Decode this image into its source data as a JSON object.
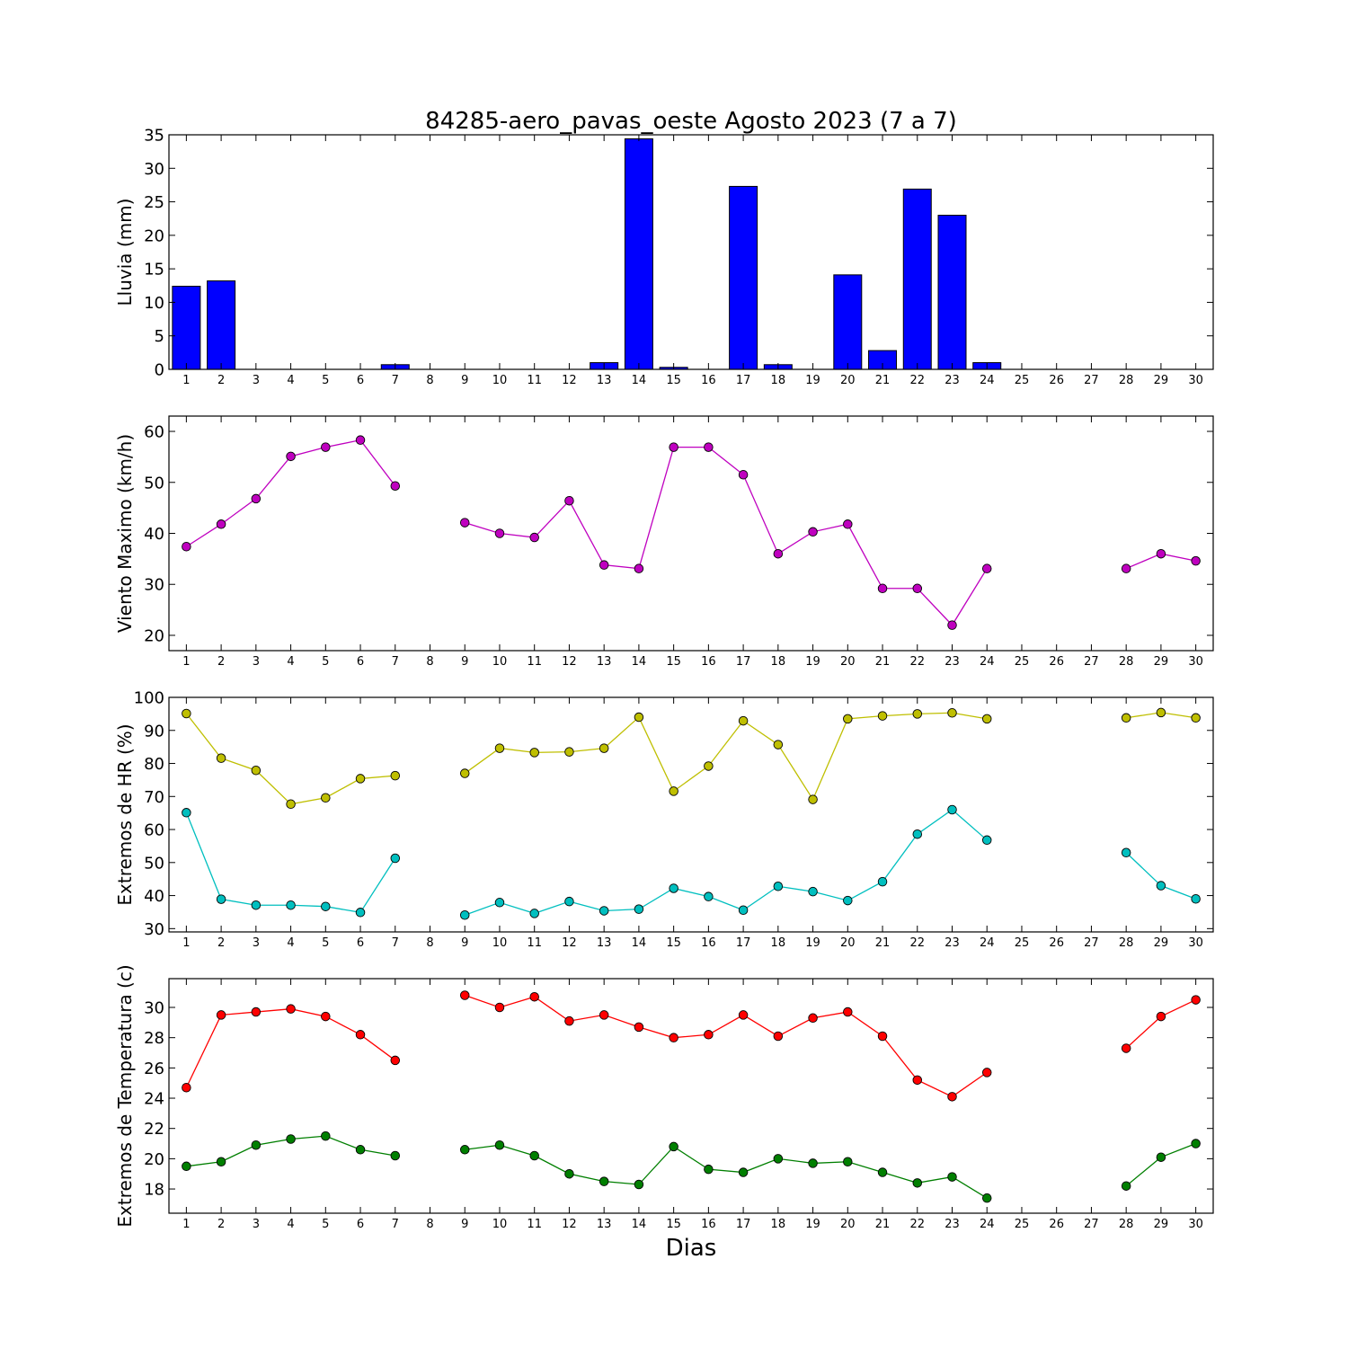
{
  "figure": {
    "title": "84285-aero_pavas_oeste Agosto 2023  (7 a 7)",
    "xlabel": "Dias"
  },
  "chart_data": [
    {
      "type": "bar",
      "ylabel": "Lluvia (mm)",
      "ylim": [
        0,
        35
      ],
      "yticks": [
        0,
        5,
        10,
        15,
        20,
        25,
        30,
        35
      ],
      "x": [
        1,
        2,
        3,
        4,
        5,
        6,
        7,
        8,
        9,
        10,
        11,
        12,
        13,
        14,
        15,
        16,
        17,
        18,
        19,
        20,
        21,
        22,
        23,
        24,
        25,
        26,
        27,
        28,
        29,
        30
      ],
      "xtick_labels": [
        "1",
        "2",
        "3",
        "4",
        "5",
        "6",
        "7",
        "8",
        "9",
        "10",
        "11",
        "12",
        "13",
        "14",
        "15",
        "16",
        "17",
        "18",
        "19",
        "20",
        "21",
        "22",
        "23",
        "24",
        "25",
        "26",
        "27",
        "28",
        "29",
        "30"
      ],
      "xlim": [
        0.5,
        30.5
      ],
      "series": [
        {
          "color": "#0000ff",
          "values": [
            12.4,
            13.2,
            0,
            0,
            0,
            0,
            0.7,
            0,
            0,
            0,
            0,
            0,
            1.0,
            34.4,
            0.3,
            0,
            27.3,
            0.7,
            0,
            14.1,
            2.8,
            26.9,
            23.0,
            1.0,
            0,
            0,
            0,
            0,
            0,
            0
          ]
        }
      ]
    },
    {
      "type": "line",
      "ylabel": "Viento Maximo (km/h)",
      "ylim": [
        17,
        63
      ],
      "yticks": [
        20,
        30,
        40,
        50,
        60
      ],
      "x": [
        1,
        2,
        3,
        4,
        5,
        6,
        7,
        8,
        9,
        10,
        11,
        12,
        13,
        14,
        15,
        16,
        17,
        18,
        19,
        20,
        21,
        22,
        23,
        24,
        25,
        26,
        27,
        28,
        29,
        30
      ],
      "xtick_labels": [
        "1",
        "2",
        "3",
        "4",
        "5",
        "6",
        "7",
        "8",
        "9",
        "10",
        "11",
        "12",
        "13",
        "14",
        "15",
        "16",
        "17",
        "18",
        "19",
        "20",
        "21",
        "22",
        "23",
        "24",
        "25",
        "26",
        "27",
        "28",
        "29",
        "30"
      ],
      "xlim": [
        0.5,
        30.5
      ],
      "series": [
        {
          "color": "#bf00bf",
          "values": [
            37.4,
            41.8,
            46.8,
            55.1,
            56.9,
            58.3,
            49.3,
            null,
            42.1,
            40.0,
            39.2,
            46.4,
            33.8,
            33.1,
            56.9,
            56.9,
            51.5,
            36.0,
            40.3,
            41.8,
            29.2,
            29.2,
            22.0,
            33.1,
            null,
            null,
            null,
            33.1,
            36.0,
            34.6
          ]
        }
      ]
    },
    {
      "type": "line",
      "ylabel": "Extremos de HR (%)",
      "ylim": [
        29,
        100
      ],
      "yticks": [
        30,
        40,
        50,
        60,
        70,
        80,
        90,
        100
      ],
      "x": [
        1,
        2,
        3,
        4,
        5,
        6,
        7,
        8,
        9,
        10,
        11,
        12,
        13,
        14,
        15,
        16,
        17,
        18,
        19,
        20,
        21,
        22,
        23,
        24,
        25,
        26,
        27,
        28,
        29,
        30
      ],
      "xtick_labels": [
        "1",
        "2",
        "3",
        "4",
        "5",
        "6",
        "7",
        "8",
        "9",
        "10",
        "11",
        "12",
        "13",
        "14",
        "15",
        "16",
        "17",
        "18",
        "19",
        "20",
        "21",
        "22",
        "23",
        "24",
        "25",
        "26",
        "27",
        "28",
        "29",
        "30"
      ],
      "xlim": [
        0.5,
        30.5
      ],
      "series": [
        {
          "color": "#bfbf00",
          "values": [
            95.1,
            81.6,
            77.9,
            67.7,
            69.6,
            75.4,
            76.3,
            null,
            77.0,
            84.6,
            83.3,
            83.5,
            84.6,
            94.0,
            71.6,
            79.2,
            92.9,
            85.7,
            69.1,
            93.5,
            94.4,
            95.0,
            95.3,
            93.5,
            null,
            null,
            null,
            93.8,
            95.4,
            93.8
          ]
        },
        {
          "color": "#00bfbf",
          "values": [
            65.1,
            38.9,
            37.1,
            37.1,
            36.7,
            34.9,
            51.3,
            null,
            34.1,
            37.9,
            34.6,
            38.2,
            35.4,
            35.9,
            42.2,
            39.7,
            35.6,
            42.8,
            41.2,
            38.5,
            44.2,
            58.6,
            66.0,
            56.8,
            null,
            null,
            null,
            53.0,
            43.0,
            39.0
          ]
        }
      ]
    },
    {
      "type": "line",
      "ylabel": "Extremos de Temperatura (c)",
      "ylim": [
        16.4,
        31.9
      ],
      "yticks": [
        18,
        20,
        22,
        24,
        26,
        28,
        30
      ],
      "x": [
        1,
        2,
        3,
        4,
        5,
        6,
        7,
        8,
        9,
        10,
        11,
        12,
        13,
        14,
        15,
        16,
        17,
        18,
        19,
        20,
        21,
        22,
        23,
        24,
        25,
        26,
        27,
        28,
        29,
        30
      ],
      "xtick_labels": [
        "1",
        "2",
        "3",
        "4",
        "5",
        "6",
        "7",
        "8",
        "9",
        "10",
        "11",
        "12",
        "13",
        "14",
        "15",
        "16",
        "17",
        "18",
        "19",
        "20",
        "21",
        "22",
        "23",
        "24",
        "25",
        "26",
        "27",
        "28",
        "29",
        "30"
      ],
      "xlim": [
        0.5,
        30.5
      ],
      "series": [
        {
          "color": "#ff0000",
          "values": [
            24.7,
            29.5,
            29.7,
            29.9,
            29.4,
            28.2,
            26.5,
            null,
            30.8,
            30.0,
            30.7,
            29.1,
            29.5,
            28.7,
            28.0,
            28.2,
            29.5,
            28.1,
            29.3,
            29.7,
            28.1,
            25.2,
            24.1,
            25.7,
            null,
            null,
            null,
            27.3,
            29.4,
            30.5
          ]
        },
        {
          "color": "#007f00",
          "values": [
            19.5,
            19.8,
            20.9,
            21.3,
            21.5,
            20.6,
            20.2,
            null,
            20.6,
            20.9,
            20.2,
            19.0,
            18.5,
            18.3,
            20.8,
            19.3,
            19.1,
            20.0,
            19.7,
            19.8,
            19.1,
            18.4,
            18.8,
            17.4,
            null,
            null,
            null,
            18.2,
            20.1,
            21.0
          ]
        }
      ]
    }
  ]
}
